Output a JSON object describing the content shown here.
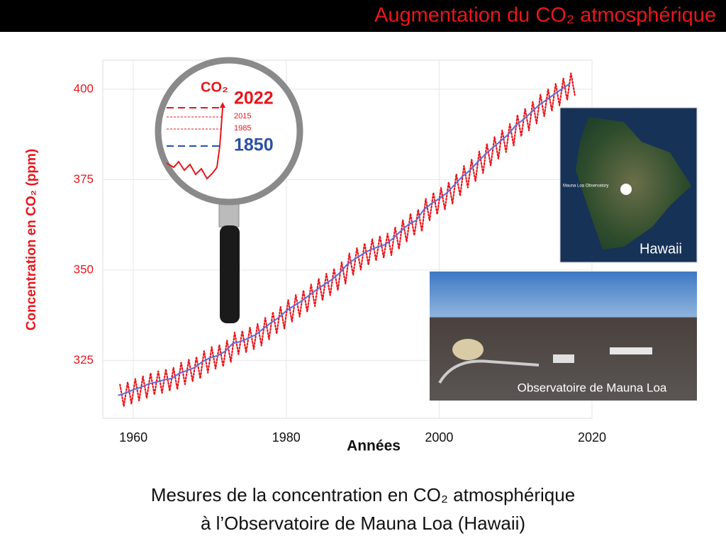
{
  "slide": {
    "title": "Augmentation du CO₂ atmosphérique",
    "caption": [
      "Mesures de la concentration en CO₂ atmosphérique",
      "à l’Observatoire de Mauna Loa (Hawaii)"
    ]
  },
  "insets": {
    "magnifier": {
      "label": "CO₂",
      "years": [
        "2022",
        "2015",
        "1985",
        "1850"
      ]
    },
    "map": {
      "label": "Hawaii",
      "marker": "Mauna Loa Observatory"
    },
    "photo": {
      "label": "Observatoire de Mauna Loa"
    }
  },
  "chart_data": {
    "type": "line",
    "ylabel": "Concentration en CO₂ (ppm)",
    "xlabel": "Années",
    "xlim": [
      1956,
      2020
    ],
    "ylim": [
      309,
      408
    ],
    "xticks": [
      1960,
      1980,
      2000,
      2020
    ],
    "yticks": [
      325,
      350,
      375,
      400
    ],
    "grid": true,
    "series": [
      {
        "color": "#e8161c",
        "style": "dotted",
        "x": [
          1958.25,
          1958.75,
          1959.25,
          1959.75,
          1960.25,
          1960.75,
          1961.25,
          1961.75,
          1962.25,
          1962.75,
          1963.25,
          1963.75,
          1964.25,
          1964.75,
          1965.25,
          1965.75,
          1966.25,
          1966.75,
          1967.25,
          1967.75,
          1968.25,
          1968.75,
          1969.25,
          1969.75,
          1970.25,
          1970.75,
          1971.25,
          1971.75,
          1972.25,
          1972.75,
          1973.25,
          1973.75,
          1974.25,
          1974.75,
          1975.25,
          1975.75,
          1976.25,
          1976.75,
          1977.25,
          1977.75,
          1978.25,
          1978.75,
          1979.25,
          1979.75,
          1980.25,
          1980.75,
          1981.25,
          1981.75,
          1982.25,
          1982.75,
          1983.25,
          1983.75,
          1984.25,
          1984.75,
          1985.25,
          1985.75,
          1986.25,
          1986.75,
          1987.25,
          1987.75,
          1988.25,
          1988.75,
          1989.25,
          1989.75,
          1990.25,
          1990.75,
          1991.25,
          1991.75,
          1992.25,
          1992.75,
          1993.25,
          1993.75,
          1994.25,
          1994.75,
          1995.25,
          1995.75,
          1996.25,
          1996.75,
          1997.25,
          1997.75,
          1998.25,
          1998.75,
          1999.25,
          1999.75,
          2000.25,
          2000.75,
          2001.25,
          2001.75,
          2002.25,
          2002.75,
          2003.25,
          2003.75,
          2004.25,
          2004.75,
          2005.25,
          2005.75,
          2006.25,
          2006.75,
          2007.25,
          2007.75,
          2008.25,
          2008.75,
          2009.25,
          2009.75,
          2010.25,
          2010.75,
          2011.25,
          2011.75,
          2012.25,
          2012.75,
          2013.25,
          2013.75,
          2014.25,
          2014.75,
          2015.25,
          2015.75,
          2016.25,
          2016.75,
          2017.25,
          2017.75
        ],
        "values": [
          318.3,
          312.3,
          319.0,
          313.0,
          319.9,
          313.9,
          320.6,
          314.6,
          321.5,
          315.5,
          322.0,
          316.0,
          322.6,
          316.6,
          323.0,
          317.0,
          324.4,
          318.4,
          325.2,
          319.2,
          326.0,
          320.0,
          327.6,
          321.6,
          328.7,
          322.7,
          329.3,
          323.3,
          330.5,
          324.5,
          332.7,
          326.7,
          333.2,
          327.2,
          334.1,
          328.1,
          335.1,
          329.1,
          336.8,
          330.8,
          338.4,
          332.4,
          339.8,
          333.8,
          341.7,
          335.7,
          343.1,
          337.1,
          344.4,
          338.4,
          346.0,
          340.0,
          347.6,
          341.6,
          349.0,
          343.0,
          350.4,
          344.4,
          352.2,
          346.2,
          354.6,
          348.6,
          356.1,
          350.1,
          357.4,
          351.4,
          358.6,
          352.6,
          359.4,
          353.4,
          360.1,
          354.1,
          361.8,
          355.8,
          363.8,
          357.8,
          365.6,
          359.6,
          366.7,
          360.7,
          369.7,
          363.7,
          371.4,
          365.4,
          372.7,
          366.7,
          374.3,
          368.3,
          376.5,
          370.5,
          378.8,
          372.8,
          380.5,
          374.5,
          382.8,
          376.8,
          384.9,
          378.9,
          386.8,
          380.8,
          388.6,
          382.6,
          390.4,
          384.4,
          392.9,
          386.9,
          394.6,
          388.6,
          396.5,
          390.5,
          398.5,
          392.5,
          400.0,
          394.0,
          401.5,
          395.5,
          403.0,
          397.0,
          404.4,
          398.4
        ]
      },
      {
        "color": "#5a6fd8",
        "style": "solid",
        "x": [
          1958,
          1959,
          1960,
          1961,
          1962,
          1963,
          1964,
          1965,
          1966,
          1967,
          1968,
          1969,
          1970,
          1971,
          1972,
          1973,
          1974,
          1975,
          1976,
          1977,
          1978,
          1979,
          1980,
          1981,
          1982,
          1983,
          1984,
          1985,
          1986,
          1987,
          1988,
          1989,
          1990,
          1991,
          1992,
          1993,
          1994,
          1995,
          1996,
          1997,
          1998,
          1999,
          2000,
          2001,
          2002,
          2003,
          2004,
          2005,
          2006,
          2007,
          2008,
          2009,
          2010,
          2011,
          2012,
          2013,
          2014,
          2015,
          2016,
          2017
        ],
        "values": [
          315.3,
          316.0,
          316.9,
          317.6,
          318.5,
          319.0,
          319.6,
          320.0,
          321.4,
          322.2,
          323.0,
          324.6,
          325.7,
          326.3,
          327.5,
          329.7,
          330.2,
          331.1,
          332.1,
          333.8,
          335.4,
          336.8,
          338.7,
          340.1,
          341.4,
          343.0,
          344.6,
          346.0,
          347.4,
          349.2,
          351.6,
          353.1,
          354.4,
          355.6,
          356.4,
          357.1,
          358.8,
          360.8,
          362.6,
          363.7,
          366.7,
          368.4,
          369.7,
          371.3,
          373.5,
          375.8,
          377.5,
          379.8,
          381.9,
          383.8,
          385.6,
          387.4,
          389.9,
          391.6,
          393.5,
          395.5,
          397.0,
          398.5,
          400.0,
          401.4
        ]
      }
    ]
  }
}
